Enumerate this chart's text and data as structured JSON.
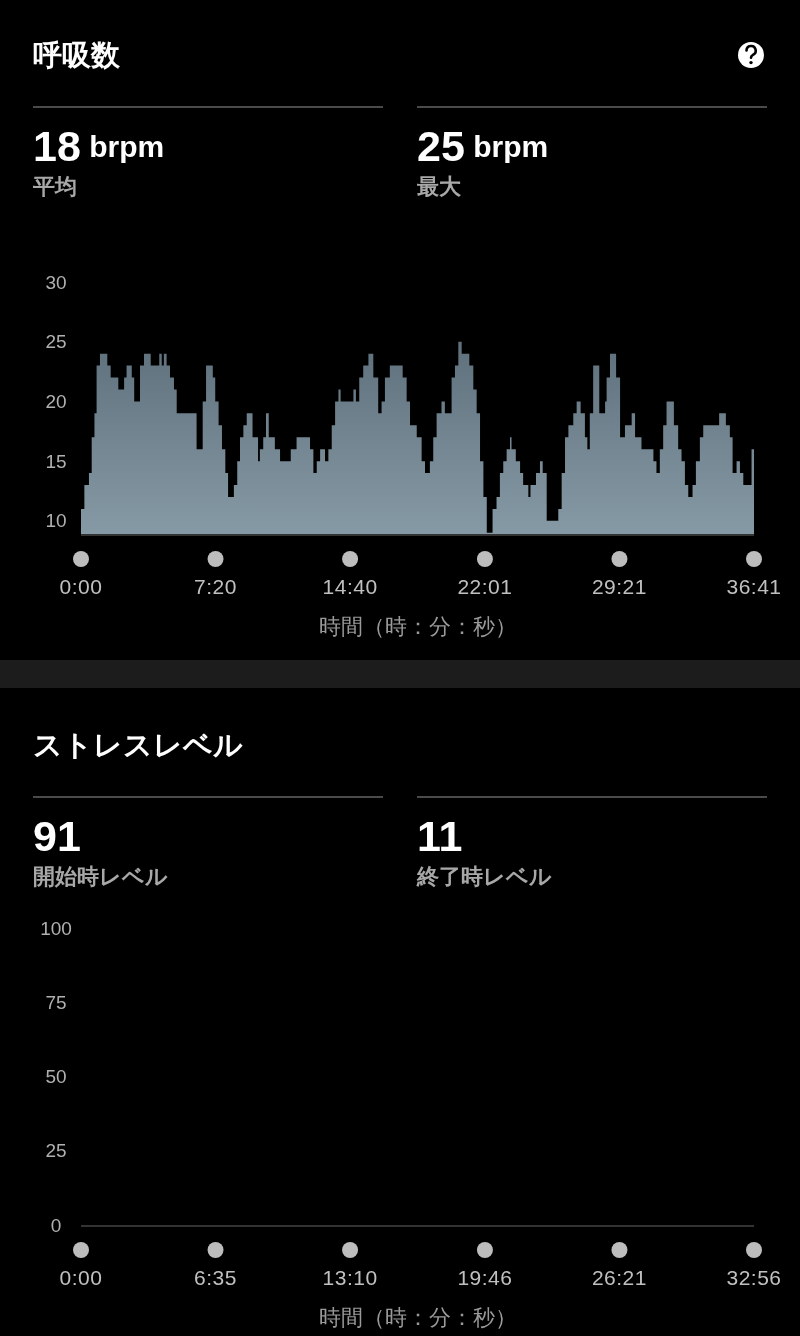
{
  "chart_data": [
    {
      "type": "area",
      "title": "呼吸数",
      "annotations": [
        "18 brpm",
        "平均",
        "25 brpm",
        "最大"
      ],
      "xlabel": "時間（時：分：秒）",
      "x": [
        0,
        11,
        26,
        35,
        44,
        51,
        62,
        86,
        97,
        122,
        141,
        149,
        166,
        174,
        193,
        206,
        228,
        256,
        264,
        271,
        280,
        291,
        304,
        313,
        378,
        398,
        409,
        431,
        439,
        450,
        461,
        472,
        481,
        500,
        511,
        520,
        531,
        542,
        561,
        579,
        585,
        596,
        605,
        614,
        634,
        651,
        686,
        705,
        749,
        760,
        771,
        782,
        798,
        809,
        820,
        831,
        842,
        849,
        891,
        899,
        910,
        923,
        940,
        956,
        972,
        983,
        994,
        1010,
        1052,
        1065,
        1076,
        1098,
        1114,
        1125,
        1141,
        1152,
        1163,
        1179,
        1190,
        1212,
        1223,
        1234,
        1245,
        1270,
        1283,
        1294,
        1305,
        1316,
        1327,
        1346,
        1359,
        1370,
        1381,
        1392,
        1403,
        1408,
        1422,
        1436,
        1446,
        1463,
        1470,
        1488,
        1501,
        1510,
        1523,
        1561,
        1572,
        1583,
        1594,
        1610,
        1621,
        1634,
        1648,
        1656,
        1664,
        1675,
        1695,
        1714,
        1719,
        1730,
        1750,
        1763,
        1779,
        1801,
        1812,
        1833,
        1872,
        1882,
        1893,
        1904,
        1915,
        1939,
        1953,
        1964,
        1975,
        1986,
        2000,
        2011,
        2024,
        2035,
        2087,
        2109,
        2122,
        2131,
        2144,
        2155,
        2166,
        2193,
        2201
      ],
      "series": [
        {
          "color": "#768c9a",
          "values": [
            11,
            13,
            14,
            17,
            19,
            23,
            24,
            23,
            22,
            21,
            22,
            23,
            22,
            20,
            23,
            24,
            23,
            24,
            23,
            24,
            23,
            22,
            21,
            19,
            16,
            20,
            23,
            22,
            20,
            18,
            16,
            14,
            12,
            13,
            15,
            17,
            18,
            19,
            17,
            15,
            16,
            17,
            19,
            17,
            16,
            15,
            16,
            17,
            16,
            14,
            15,
            16,
            15,
            16,
            18,
            20,
            21,
            20,
            21,
            20,
            22,
            23,
            24,
            22,
            19,
            20,
            22,
            23,
            22,
            20,
            18,
            17,
            15,
            14,
            15,
            17,
            19,
            20,
            19,
            22,
            23,
            25,
            24,
            23,
            21,
            19,
            15,
            12,
            9,
            11,
            12,
            14,
            15,
            16,
            17,
            16,
            15,
            14,
            13,
            12,
            13,
            14,
            15,
            14,
            10,
            11,
            14,
            17,
            18,
            19,
            20,
            19,
            17,
            16,
            19,
            23,
            19,
            20,
            22,
            24,
            22,
            17,
            18,
            19,
            17,
            16,
            15,
            14,
            16,
            18,
            20,
            18,
            16,
            15,
            13,
            12,
            13,
            15,
            17,
            18,
            19,
            18,
            17,
            14,
            15,
            14,
            13,
            16,
            16
          ]
        }
      ],
      "xlim": [
        0,
        2201
      ],
      "xticks": [
        {
          "value": 0,
          "label": "0:00"
        },
        {
          "value": 440,
          "label": "7:20"
        },
        {
          "value": 880,
          "label": "14:40"
        },
        {
          "value": 1321,
          "label": "22:01"
        },
        {
          "value": 1761,
          "label": "29:21"
        },
        {
          "value": 2201,
          "label": "36:41"
        }
      ],
      "ylim": [
        8.9,
        30
      ],
      "yticks": [
        10,
        15,
        20,
        25,
        30
      ]
    },
    {
      "type": "line",
      "title": "ストレスレベル",
      "annotations": [
        "91",
        "開始時レベル",
        "11",
        "終了時レベル"
      ],
      "xlabel": "時間（時：分：秒）",
      "xlim": [
        0,
        1976
      ],
      "xticks": [
        {
          "value": 0,
          "label": "0:00"
        },
        {
          "value": 395,
          "label": "6:35"
        },
        {
          "value": 790,
          "label": "13:10"
        },
        {
          "value": 1186,
          "label": "19:46"
        },
        {
          "value": 1581,
          "label": "26:21"
        },
        {
          "value": 1976,
          "label": "32:56"
        }
      ],
      "ylim": [
        0,
        100
      ],
      "yticks": [
        0,
        25,
        50,
        75,
        100
      ]
    }
  ]
}
